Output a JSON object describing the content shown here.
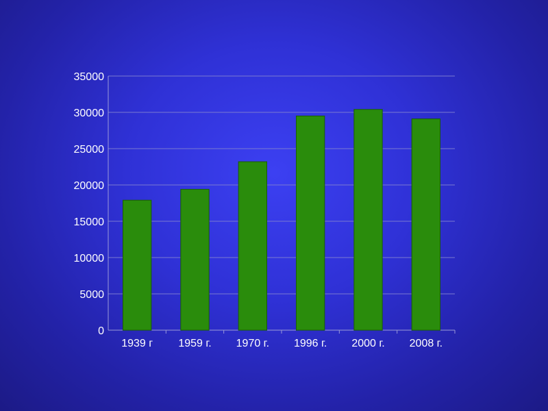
{
  "chart_data": {
    "type": "bar",
    "categories": [
      "1939 г",
      "1959 г.",
      "1970 г.",
      "1996 г.",
      "2000 г.",
      "2008 г."
    ],
    "values": [
      17900,
      19400,
      23200,
      29500,
      30400,
      29100
    ],
    "yticks": [
      "0",
      "5000",
      "10000",
      "15000",
      "20000",
      "25000",
      "30000",
      "35000"
    ],
    "ylim": [
      0,
      35000
    ],
    "grid": true,
    "title": "",
    "xlabel": "",
    "ylabel": "",
    "colors": {
      "bar": "#2a8c0c",
      "bar_border": "#1a5c06",
      "grid": "#7a7ad0",
      "axis": "#9a9ad8",
      "text": "#ffffff"
    }
  }
}
